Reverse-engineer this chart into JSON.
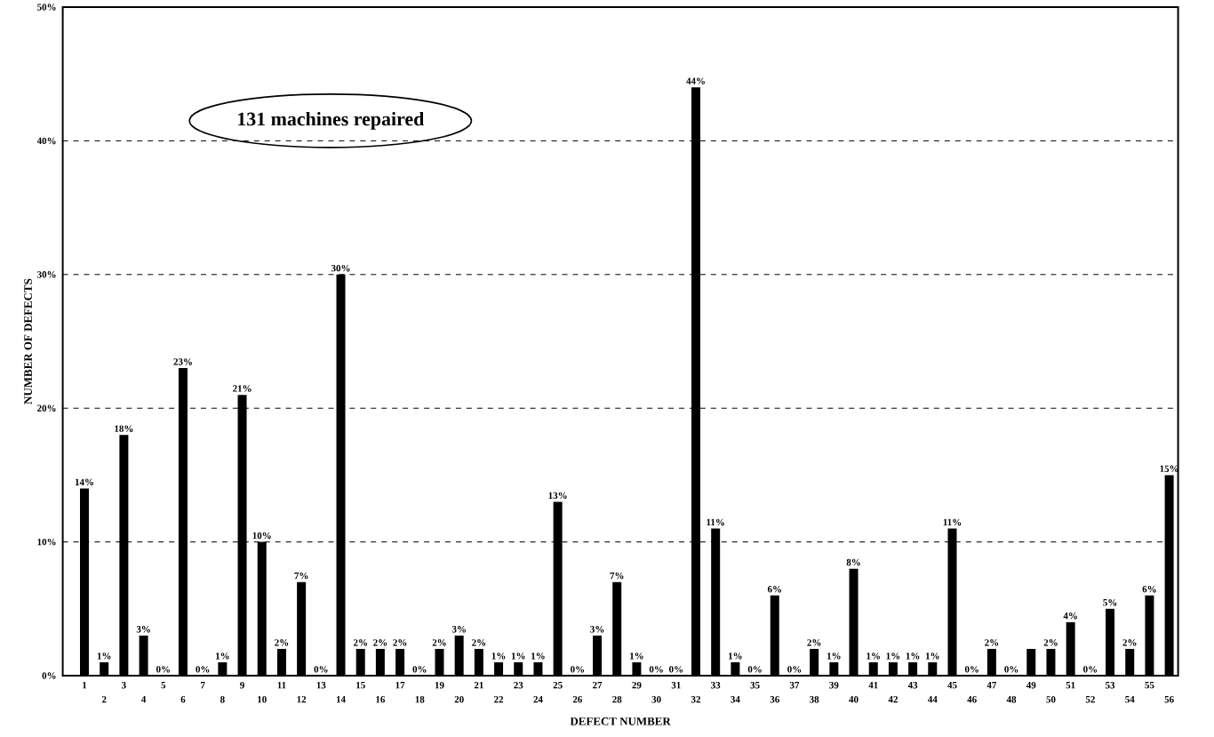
{
  "chart_data": {
    "type": "bar",
    "xlabel": "DEFECT NUMBER",
    "ylabel": "NUMBER OF DEFECTS",
    "categories": [
      "1",
      "2",
      "3",
      "4",
      "5",
      "6",
      "7",
      "8",
      "9",
      "10",
      "11",
      "12",
      "13",
      "14",
      "15",
      "16",
      "17",
      "18",
      "19",
      "20",
      "21",
      "22",
      "23",
      "24",
      "25",
      "26",
      "27",
      "28",
      "29",
      "30",
      "31",
      "32",
      "33",
      "34",
      "35",
      "36",
      "37",
      "38",
      "39",
      "40",
      "41",
      "42",
      "43",
      "44",
      "45",
      "46",
      "47",
      "48",
      "49",
      "50",
      "51",
      "52",
      "53",
      "54",
      "55",
      "56"
    ],
    "values": [
      14,
      1,
      18,
      3,
      0,
      23,
      0,
      1,
      21,
      10,
      2,
      7,
      0,
      30,
      2,
      2,
      2,
      0,
      2,
      3,
      2,
      1,
      1,
      1,
      13,
      0,
      3,
      7,
      1,
      0,
      0,
      44,
      11,
      1,
      0,
      6,
      0,
      2,
      1,
      8,
      1,
      1,
      1,
      1,
      11,
      0,
      2,
      0,
      2,
      2,
      4,
      0,
      5,
      2,
      6,
      15
    ],
    "value_labels": [
      "14%",
      "1%",
      "18%",
      "3%",
      "0%",
      "23%",
      "0%",
      "1%",
      "21%",
      "10%",
      "2%",
      "7%",
      "0%",
      "30%",
      "2%",
      "2%",
      "2%",
      "0%",
      "2%",
      "3%",
      "2%",
      "1%",
      "1%",
      "1%",
      "13%",
      "0%",
      "3%",
      "7%",
      "1%",
      "0%",
      "0%",
      "44%",
      "11%",
      "1%",
      "0%",
      "6%",
      "0%",
      "2%",
      "1%",
      "8%",
      "1%",
      "1%",
      "1%",
      "1%",
      "11%",
      "0%",
      "2%",
      "0%",
      null,
      "2%",
      "4%",
      "0%",
      "5%",
      "2%",
      "6%",
      "15%"
    ],
    "color": "#000000",
    "ylim": [
      0,
      50
    ],
    "yticks": [
      {
        "value": 0,
        "label": "0%"
      },
      {
        "value": 10,
        "label": "10%"
      },
      {
        "value": 20,
        "label": "20%"
      },
      {
        "value": 30,
        "label": "30%"
      },
      {
        "value": 40,
        "label": "40%"
      },
      {
        "value": 50,
        "label": "50%"
      }
    ],
    "grid": "y",
    "annotations": [
      "131 machines repaired"
    ]
  }
}
